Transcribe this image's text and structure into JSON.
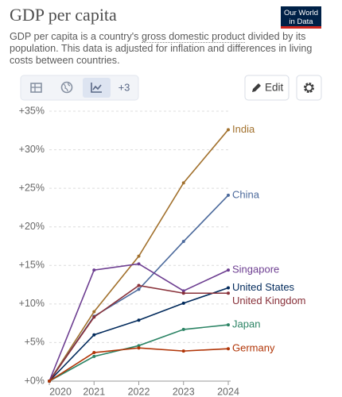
{
  "chart_data": {
    "type": "line",
    "title": "GDP per capita",
    "logo": [
      "Our World",
      "in Data"
    ],
    "subtitle": {
      "before": "GDP per capita is a country's ",
      "link": "gross domestic product",
      "after": " divided by its population. This data is adjusted for inflation and differences in living costs between countries."
    },
    "toolbar": {
      "more": "+3",
      "edit": "Edit"
    },
    "x": [
      2020,
      2021,
      2022,
      2023,
      2024
    ],
    "xlim": [
      2020,
      2024
    ],
    "xticks": [
      2020,
      2021,
      2022,
      2023,
      2024
    ],
    "ylim": [
      0,
      35
    ],
    "yticks": [
      {
        "value": 0,
        "label": "+0%"
      },
      {
        "value": 5,
        "label": "+5%"
      },
      {
        "value": 10,
        "label": "+10%"
      },
      {
        "value": 15,
        "label": "+15%"
      },
      {
        "value": 20,
        "label": "+20%"
      },
      {
        "value": 25,
        "label": "+25%"
      },
      {
        "value": 30,
        "label": "+30%"
      },
      {
        "value": 35,
        "label": "+35%"
      }
    ],
    "grid": true,
    "series": [
      {
        "name": "India",
        "color": "#a2712d",
        "values": [
          0,
          9.0,
          16.2,
          25.7,
          32.6
        ]
      },
      {
        "name": "China",
        "color": "#4c6a9c",
        "values": [
          0,
          8.4,
          11.9,
          18.1,
          24.1
        ]
      },
      {
        "name": "Singapore",
        "color": "#6d3e91",
        "values": [
          0,
          14.4,
          15.2,
          11.7,
          14.4
        ]
      },
      {
        "name": "United States",
        "color": "#00295b",
        "values": [
          0,
          6.0,
          7.9,
          10.1,
          12.1
        ]
      },
      {
        "name": "United Kingdom",
        "color": "#883039",
        "values": [
          0,
          8.3,
          12.4,
          11.4,
          11.4
        ]
      },
      {
        "name": "Japan",
        "color": "#2c8465",
        "values": [
          0,
          3.2,
          4.6,
          6.7,
          7.3
        ]
      },
      {
        "name": "Germany",
        "color": "#b13507",
        "values": [
          0,
          3.7,
          4.3,
          3.9,
          4.2
        ]
      }
    ]
  }
}
